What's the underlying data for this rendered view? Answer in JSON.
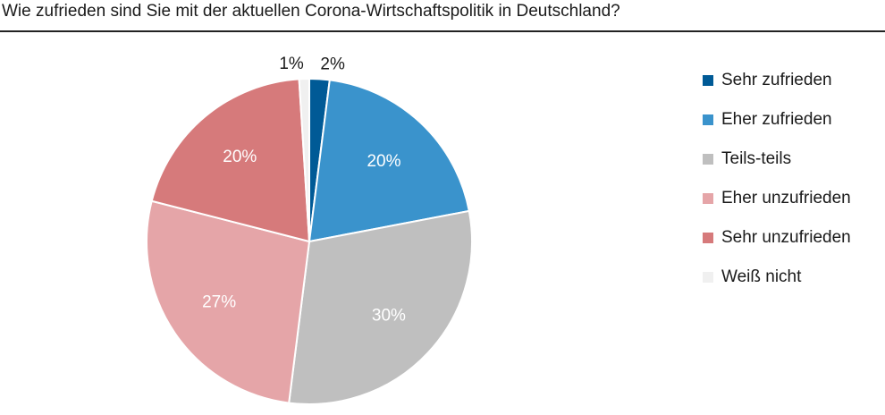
{
  "chart_data": {
    "type": "pie",
    "title": "Wie zufrieden sind Sie mit der aktuellen Corona-Wirtschaftspolitik in Deutschland?",
    "legend_position": "right",
    "slices": [
      {
        "name": "Sehr zufrieden",
        "value": 2,
        "label": "2%",
        "color": "#005a96"
      },
      {
        "name": "Eher zufrieden",
        "value": 20,
        "label": "20%",
        "color": "#3a93cc"
      },
      {
        "name": "Teils-teils",
        "value": 30,
        "label": "30%",
        "color": "#bfbfbf"
      },
      {
        "name": "Eher unzufrieden",
        "value": 27,
        "label": "27%",
        "color": "#e5a5a8"
      },
      {
        "name": "Sehr unzufrieden",
        "value": 20,
        "label": "20%",
        "color": "#d67a7b"
      },
      {
        "name": "Weiß nicht",
        "value": 1,
        "label": "1%",
        "color": "#f0f0f0"
      }
    ]
  }
}
